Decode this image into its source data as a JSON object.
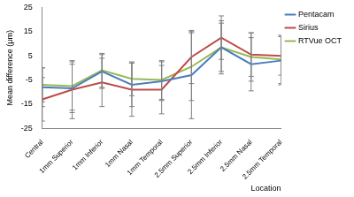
{
  "chart_data": {
    "type": "line",
    "x_label": "Location",
    "y_label": "Mean difference (μm)",
    "categories": [
      "Central",
      "1mm Superior",
      "1mm Inferior",
      "1mm Nasal",
      "1mm Temporal",
      "2.5mm Superior",
      "2.5mm Inferior",
      "2.5mm Nasal",
      "2.5mm Temporal"
    ],
    "series": [
      {
        "name": "Pentacam",
        "color": "#4a7ebb",
        "values": [
          -8,
          -8.5,
          -1.5,
          -7,
          -5.5,
          -3,
          8.5,
          1.5,
          3
        ],
        "errors": [
          8,
          10,
          7,
          9,
          8,
          18,
          11,
          11,
          10
        ]
      },
      {
        "name": "Sirius",
        "color": "#be4b48",
        "values": [
          -13,
          -9,
          -6,
          -9,
          -9,
          4.5,
          12.5,
          5.5,
          5
        ],
        "errors": [
          9,
          12,
          10,
          11,
          10,
          11,
          9,
          9,
          8
        ]
      },
      {
        "name": "RTVue OCT",
        "color": "#98b954",
        "values": [
          -7,
          -7.5,
          -1,
          -4.5,
          -5,
          0.5,
          8.5,
          4.5,
          3.5
        ],
        "errors": [
          7,
          10,
          7,
          7,
          8,
          14,
          10,
          10,
          10
        ]
      }
    ],
    "ylim": [
      -25,
      25
    ],
    "yticks": [
      -25,
      -15,
      -5,
      5,
      15,
      25
    ],
    "grid": false,
    "legend": "right",
    "marker": "none"
  }
}
